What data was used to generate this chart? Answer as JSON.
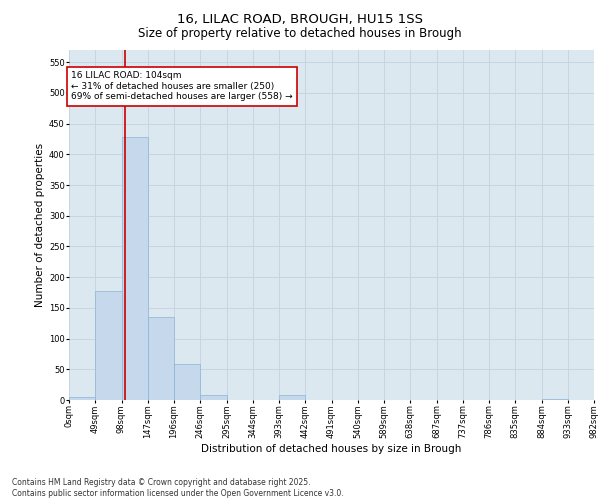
{
  "title_line1": "16, LILAC ROAD, BROUGH, HU15 1SS",
  "title_line2": "Size of property relative to detached houses in Brough",
  "xlabel": "Distribution of detached houses by size in Brough",
  "ylabel": "Number of detached properties",
  "bar_values": [
    5,
    178,
    428,
    135,
    58,
    8,
    0,
    0,
    8,
    0,
    0,
    0,
    0,
    0,
    0,
    0,
    0,
    0,
    2,
    0
  ],
  "bin_labels": [
    "0sqm",
    "49sqm",
    "98sqm",
    "147sqm",
    "196sqm",
    "246sqm",
    "295sqm",
    "344sqm",
    "393sqm",
    "442sqm",
    "491sqm",
    "540sqm",
    "589sqm",
    "638sqm",
    "687sqm",
    "737sqm",
    "786sqm",
    "835sqm",
    "884sqm",
    "933sqm",
    "982sqm"
  ],
  "bar_color": "#c5d8ec",
  "bar_edge_color": "#8ab4d4",
  "vline_x": 2.12,
  "vline_color": "#cc0000",
  "annotation_text": "16 LILAC ROAD: 104sqm\n← 31% of detached houses are smaller (250)\n69% of semi-detached houses are larger (558) →",
  "annotation_box_color": "white",
  "annotation_box_edge": "#cc0000",
  "ylim": [
    0,
    570
  ],
  "yticks": [
    0,
    50,
    100,
    150,
    200,
    250,
    300,
    350,
    400,
    450,
    500,
    550
  ],
  "grid_color": "#c8d4e4",
  "background_color": "#dce8f0",
  "footer_text": "Contains HM Land Registry data © Crown copyright and database right 2025.\nContains public sector information licensed under the Open Government Licence v3.0.",
  "title_fontsize": 9.5,
  "subtitle_fontsize": 8.5,
  "annotation_fontsize": 6.5,
  "axis_label_fontsize": 7.5,
  "tick_fontsize": 6.0,
  "footer_fontsize": 5.5
}
